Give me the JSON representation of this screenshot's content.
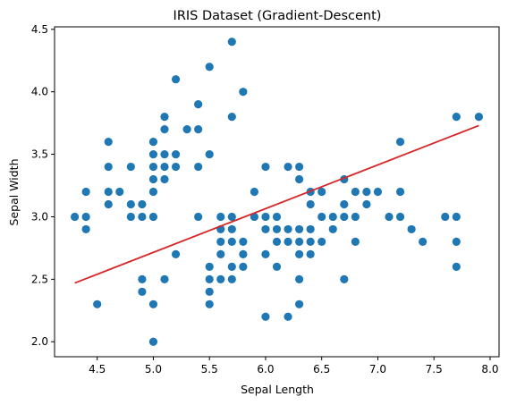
{
  "chart_data": {
    "type": "scatter",
    "title": "IRIS Dataset (Gradient-Descent)",
    "xlabel": "Sepal Length",
    "ylabel": "Sepal Width",
    "xlim": [
      4.12,
      8.08
    ],
    "ylim": [
      1.88,
      4.52
    ],
    "xticks": [
      "4.5",
      "5.0",
      "5.5",
      "6.0",
      "6.5",
      "7.0",
      "7.5",
      "8.0"
    ],
    "yticks": [
      "2.0",
      "2.5",
      "3.0",
      "3.5",
      "4.0",
      "4.5"
    ],
    "grid": false,
    "point_color": "#1f77b4",
    "line_color": "#d62728",
    "fit_line": {
      "x": [
        4.3,
        7.9
      ],
      "y": [
        2.47,
        3.73
      ]
    },
    "points": [
      [
        4.3,
        3.0
      ],
      [
        4.4,
        3.2
      ],
      [
        4.4,
        3.0
      ],
      [
        4.4,
        2.9
      ],
      [
        4.5,
        2.3
      ],
      [
        4.6,
        3.6
      ],
      [
        4.6,
        3.4
      ],
      [
        4.6,
        3.2
      ],
      [
        4.6,
        3.1
      ],
      [
        4.7,
        3.2
      ],
      [
        4.8,
        3.4
      ],
      [
        4.8,
        3.1
      ],
      [
        4.8,
        3.0
      ],
      [
        4.9,
        3.1
      ],
      [
        4.9,
        3.0
      ],
      [
        4.9,
        2.5
      ],
      [
        4.9,
        2.4
      ],
      [
        5.0,
        3.6
      ],
      [
        5.0,
        3.5
      ],
      [
        5.0,
        3.4
      ],
      [
        5.0,
        3.3
      ],
      [
        5.0,
        3.2
      ],
      [
        5.0,
        3.0
      ],
      [
        5.0,
        2.3
      ],
      [
        5.0,
        2.0
      ],
      [
        5.1,
        3.8
      ],
      [
        5.1,
        3.7
      ],
      [
        5.1,
        3.5
      ],
      [
        5.1,
        3.4
      ],
      [
        5.1,
        3.3
      ],
      [
        5.1,
        2.5
      ],
      [
        5.2,
        4.1
      ],
      [
        5.2,
        3.5
      ],
      [
        5.2,
        3.4
      ],
      [
        5.2,
        2.7
      ],
      [
        5.3,
        3.7
      ],
      [
        5.4,
        3.9
      ],
      [
        5.4,
        3.7
      ],
      [
        5.4,
        3.4
      ],
      [
        5.4,
        3.0
      ],
      [
        5.5,
        4.2
      ],
      [
        5.5,
        3.5
      ],
      [
        5.5,
        2.6
      ],
      [
        5.5,
        2.5
      ],
      [
        5.5,
        2.4
      ],
      [
        5.5,
        2.3
      ],
      [
        5.6,
        3.0
      ],
      [
        5.6,
        2.9
      ],
      [
        5.6,
        2.8
      ],
      [
        5.6,
        2.7
      ],
      [
        5.6,
        2.5
      ],
      [
        5.7,
        4.4
      ],
      [
        5.7,
        3.8
      ],
      [
        5.7,
        3.0
      ],
      [
        5.7,
        2.9
      ],
      [
        5.7,
        2.8
      ],
      [
        5.7,
        2.6
      ],
      [
        5.7,
        2.5
      ],
      [
        5.8,
        4.0
      ],
      [
        5.8,
        2.8
      ],
      [
        5.8,
        2.7
      ],
      [
        5.8,
        2.6
      ],
      [
        5.9,
        3.2
      ],
      [
        5.9,
        3.0
      ],
      [
        6.0,
        3.4
      ],
      [
        6.0,
        3.0
      ],
      [
        6.0,
        2.9
      ],
      [
        6.0,
        2.7
      ],
      [
        6.0,
        2.2
      ],
      [
        6.1,
        3.0
      ],
      [
        6.1,
        2.9
      ],
      [
        6.1,
        2.8
      ],
      [
        6.1,
        2.6
      ],
      [
        6.2,
        3.4
      ],
      [
        6.2,
        2.9
      ],
      [
        6.2,
        2.8
      ],
      [
        6.2,
        2.2
      ],
      [
        6.3,
        3.4
      ],
      [
        6.3,
        3.3
      ],
      [
        6.3,
        2.9
      ],
      [
        6.3,
        2.8
      ],
      [
        6.3,
        2.7
      ],
      [
        6.3,
        2.5
      ],
      [
        6.3,
        2.3
      ],
      [
        6.4,
        3.2
      ],
      [
        6.4,
        3.1
      ],
      [
        6.4,
        2.9
      ],
      [
        6.4,
        2.8
      ],
      [
        6.4,
        2.7
      ],
      [
        6.5,
        3.2
      ],
      [
        6.5,
        3.0
      ],
      [
        6.5,
        2.8
      ],
      [
        6.6,
        3.0
      ],
      [
        6.6,
        2.9
      ],
      [
        6.7,
        3.3
      ],
      [
        6.7,
        3.1
      ],
      [
        6.7,
        3.0
      ],
      [
        6.7,
        2.5
      ],
      [
        6.8,
        3.2
      ],
      [
        6.8,
        3.0
      ],
      [
        6.8,
        2.8
      ],
      [
        6.9,
        3.2
      ],
      [
        6.9,
        3.1
      ],
      [
        7.0,
        3.2
      ],
      [
        7.1,
        3.0
      ],
      [
        7.2,
        3.6
      ],
      [
        7.2,
        3.2
      ],
      [
        7.2,
        3.0
      ],
      [
        7.3,
        2.9
      ],
      [
        7.4,
        2.8
      ],
      [
        7.6,
        3.0
      ],
      [
        7.7,
        3.8
      ],
      [
        7.7,
        3.0
      ],
      [
        7.7,
        2.8
      ],
      [
        7.7,
        2.6
      ],
      [
        7.9,
        3.8
      ]
    ]
  }
}
